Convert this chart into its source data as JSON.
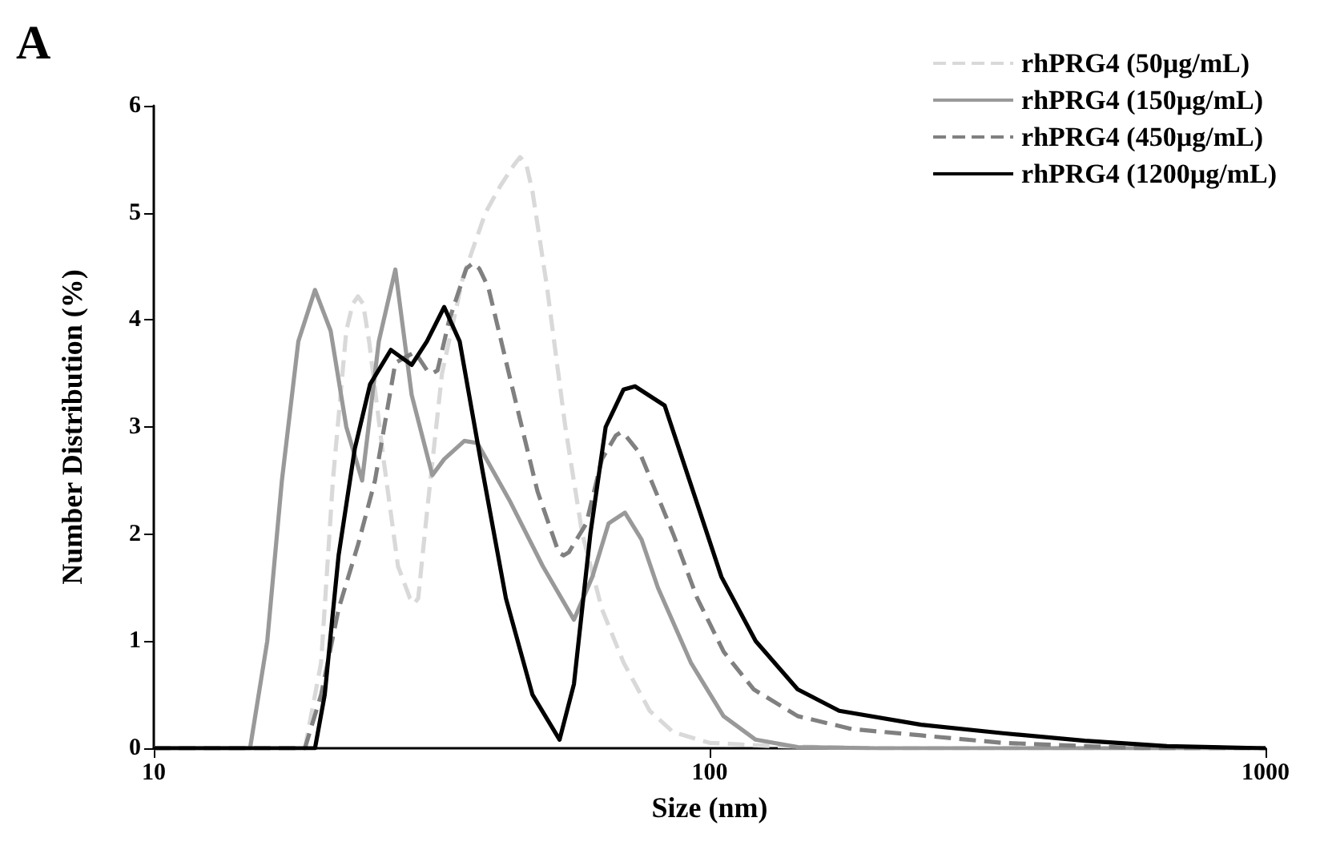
{
  "chart_data": {
    "type": "line",
    "xlabel": "Size (nm)",
    "ylabel": "Number Distribution (%)",
    "annotations": [
      "A"
    ],
    "log": "x",
    "xlim": [
      10,
      1000
    ],
    "xticks": [
      10,
      100,
      1000
    ],
    "ylim": [
      0,
      6
    ],
    "yticks": [
      0,
      1,
      2,
      3,
      4,
      5,
      6
    ],
    "grid": false,
    "legend": "top right",
    "marker": "none",
    "series": [
      {
        "name": "rhPRG4 (50µg/mL)",
        "color": "#d9d9d9",
        "line_style": "dashed",
        "x": [
          10,
          18.7,
          20,
          21,
          22.2,
          22.8,
          23.3,
          23.8,
          24.4,
          25.9,
          27.5,
          28.9,
          29.4,
          29.9,
          31,
          33,
          36,
          39.5,
          42,
          44.5,
          45.6,
          46.8,
          48,
          51,
          55,
          59,
          64,
          70,
          78,
          86,
          100,
          130,
          200,
          1000
        ],
        "values": [
          0,
          0,
          0.8,
          2.5,
          3.9,
          4.15,
          4.22,
          4.15,
          3.8,
          2.7,
          1.7,
          1.4,
          1.35,
          1.4,
          2.2,
          3.5,
          4.4,
          5.0,
          5.25,
          5.45,
          5.52,
          5.45,
          5.2,
          4.3,
          3.0,
          2.0,
          1.3,
          0.8,
          0.35,
          0.15,
          0.05,
          0.02,
          0,
          0
        ]
      },
      {
        "name": "rhPRG4 (150µg/mL)",
        "color": "#999999",
        "line_style": "solid",
        "x": [
          10,
          14.9,
          16,
          17,
          18.2,
          19.5,
          20.8,
          22.2,
          23.7,
          25.4,
          27.2,
          29.1,
          31.7,
          33.3,
          36.2,
          38.2,
          43.8,
          50.1,
          57,
          61.5,
          65.8,
          70.4,
          75.4,
          80.7,
          92.5,
          105.9,
          121,
          144,
          200,
          1000
        ],
        "values": [
          0,
          0,
          1.0,
          2.5,
          3.8,
          4.28,
          3.9,
          3.0,
          2.5,
          3.8,
          4.47,
          3.3,
          2.55,
          2.7,
          2.87,
          2.85,
          2.3,
          1.7,
          1.2,
          1.6,
          2.1,
          2.2,
          1.95,
          1.5,
          0.8,
          0.3,
          0.08,
          0.01,
          0,
          0
        ]
      },
      {
        "name": "rhPRG4 (450µg/mL)",
        "color": "#808080",
        "line_style": "dashed",
        "x": [
          10,
          18.7,
          20,
          21.5,
          23.3,
          25,
          27.2,
          29.5,
          31,
          31.7,
          32.4,
          34,
          36.5,
          37.5,
          38.5,
          40,
          44,
          49,
          53.5,
          54.6,
          55.8,
          60,
          64,
          67.8,
          69.2,
          70.6,
          75,
          86,
          95,
          106,
          120,
          144,
          180,
          240,
          337,
          473,
          600,
          1000
        ],
        "values": [
          0,
          0,
          0.5,
          1.3,
          1.9,
          2.5,
          3.6,
          3.7,
          3.53,
          3.5,
          3.53,
          4.0,
          4.48,
          4.53,
          4.48,
          4.3,
          3.4,
          2.4,
          1.83,
          1.8,
          1.83,
          2.1,
          2.7,
          2.92,
          2.95,
          2.92,
          2.75,
          2.0,
          1.4,
          0.9,
          0.55,
          0.3,
          0.18,
          0.12,
          0.05,
          0.02,
          0,
          0
        ]
      },
      {
        "name": "rhPRG4 (1200µg/mL)",
        "color": "#000000",
        "line_style": "solid",
        "x": [
          10,
          19.5,
          20.3,
          21.5,
          23,
          24.5,
          26.7,
          29.1,
          31,
          33.3,
          35.5,
          39,
          43,
          48,
          53.7,
          57,
          61,
          65,
          70,
          73.4,
          83,
          92,
          105,
          121,
          144,
          171,
          240,
          337,
          473,
          665,
          1000
        ],
        "values": [
          0,
          0,
          0.5,
          1.8,
          2.8,
          3.4,
          3.72,
          3.58,
          3.8,
          4.12,
          3.8,
          2.6,
          1.4,
          0.5,
          0.08,
          0.6,
          2.0,
          3.0,
          3.35,
          3.38,
          3.2,
          2.5,
          1.6,
          1.0,
          0.55,
          0.35,
          0.22,
          0.14,
          0.07,
          0.02,
          0
        ]
      }
    ]
  }
}
